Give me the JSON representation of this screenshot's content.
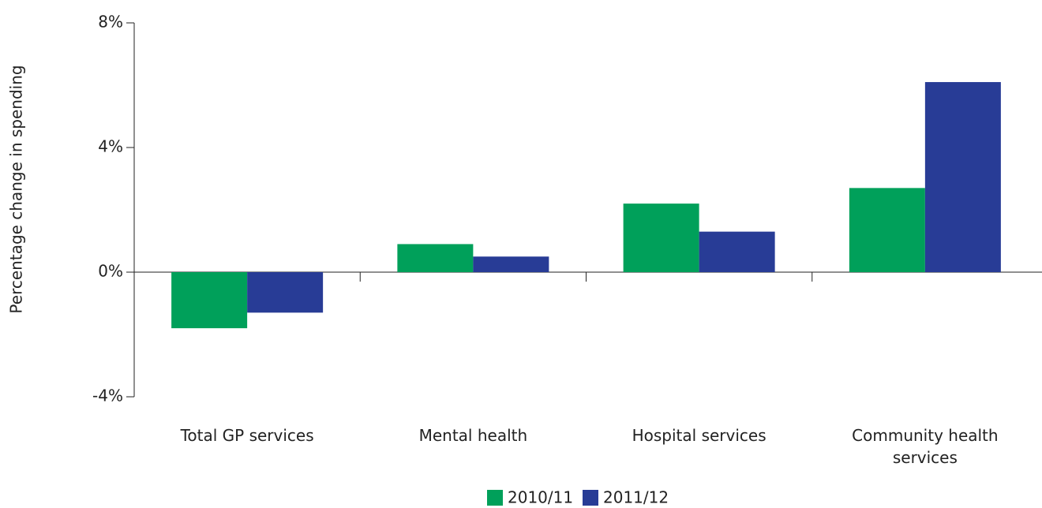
{
  "chart_data": {
    "type": "bar",
    "y_label": "Percentage change in spending",
    "categories": [
      "Total GP services",
      "Mental health",
      "Hospital services",
      "Community health services"
    ],
    "series": [
      {
        "name": "2010/11",
        "color": "#00a05a",
        "values": [
          -1.8,
          0.9,
          2.2,
          2.7
        ]
      },
      {
        "name": "2011/12",
        "color": "#283c96",
        "values": [
          -1.3,
          0.5,
          1.3,
          6.1
        ]
      }
    ],
    "ylim": [
      -4,
      8
    ],
    "yticks": [
      {
        "value": -4,
        "label": "-4%"
      },
      {
        "value": 0,
        "label": "0%"
      },
      {
        "value": 4,
        "label": "4%"
      },
      {
        "value": 8,
        "label": "8%"
      }
    ],
    "grid": false
  }
}
